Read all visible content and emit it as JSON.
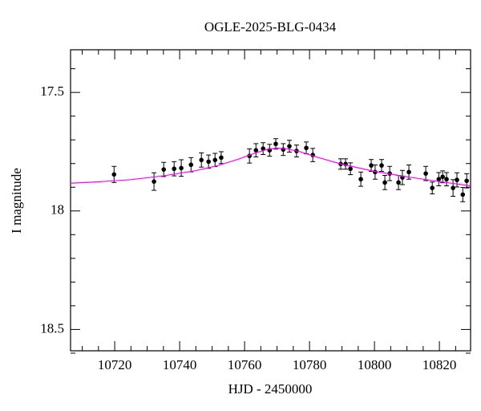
{
  "chart_data": {
    "type": "scatter",
    "title": "OGLE-2025-BLG-0434",
    "x_label": "HJD - 2450000",
    "y_label": "I magnitude",
    "xlim": [
      10706.4,
      10829.6
    ],
    "ylim": [
      17.32,
      18.59
    ],
    "y_inverted": true,
    "xticks": [
      10720,
      10740,
      10760,
      10780,
      10800,
      10820
    ],
    "xminorticks": [
      10710,
      10715,
      10725,
      10730,
      10735,
      10745,
      10750,
      10755,
      10765,
      10770,
      10775,
      10785,
      10790,
      10795,
      10805,
      10810,
      10815,
      10825
    ],
    "yticks": [
      17.5,
      18,
      18.5
    ],
    "yminorticks": [
      17.4,
      17.6,
      17.7,
      17.8,
      17.9,
      18.1,
      18.2,
      18.3,
      18.4,
      18.6
    ],
    "series": [
      {
        "type": "scatter",
        "color": "#000000",
        "x": [
          10719.8,
          10732.1,
          10735.1,
          10738.3,
          10740.5,
          10743.5,
          10746.7,
          10748.9,
          10750.9,
          10752.8,
          10761.5,
          10763.5,
          10765.7,
          10767.7,
          10769.6,
          10771.9,
          10773.8,
          10776.0,
          10779.0,
          10781.0,
          10789.6,
          10791.1,
          10792.6,
          10795.8,
          10799.0,
          10800.2,
          10802.2,
          10803.2,
          10804.7,
          10807.4,
          10808.6,
          10810.6,
          10815.8,
          10817.8,
          10819.8,
          10821.0,
          10822.2,
          10824.2,
          10825.4,
          10827.2,
          10828.4
        ],
        "values": [
          17.846,
          17.876,
          17.825,
          17.822,
          17.819,
          17.805,
          17.785,
          17.792,
          17.785,
          17.775,
          17.768,
          17.744,
          17.737,
          17.744,
          17.717,
          17.741,
          17.727,
          17.747,
          17.734,
          17.764,
          17.802,
          17.802,
          17.822,
          17.866,
          17.808,
          17.836,
          17.808,
          17.88,
          17.842,
          17.88,
          17.859,
          17.836,
          17.842,
          17.903,
          17.866,
          17.856,
          17.866,
          17.903,
          17.869,
          17.931,
          17.873
        ],
        "errors": [
          0.034,
          0.037,
          0.03,
          0.03,
          0.035,
          0.03,
          0.03,
          0.028,
          0.028,
          0.025,
          0.03,
          0.028,
          0.025,
          0.025,
          0.022,
          0.025,
          0.025,
          0.025,
          0.025,
          0.028,
          0.022,
          0.022,
          0.025,
          0.03,
          0.025,
          0.03,
          0.025,
          0.03,
          0.03,
          0.03,
          0.03,
          0.03,
          0.03,
          0.025,
          0.028,
          0.025,
          0.028,
          0.035,
          0.03,
          0.03,
          0.03
        ]
      },
      {
        "type": "line",
        "color": "#ff00ff",
        "x": [
          10706.4,
          10715,
          10725,
          10735,
          10745,
          10752,
          10758,
          10763,
          10767,
          10770,
          10773,
          10777,
          10782,
          10790,
          10800,
          10810,
          10820,
          10829.6
        ],
        "values": [
          17.883,
          17.877,
          17.868,
          17.852,
          17.83,
          17.808,
          17.782,
          17.757,
          17.74,
          17.735,
          17.738,
          17.75,
          17.772,
          17.803,
          17.833,
          17.856,
          17.876,
          17.894
        ]
      }
    ]
  }
}
